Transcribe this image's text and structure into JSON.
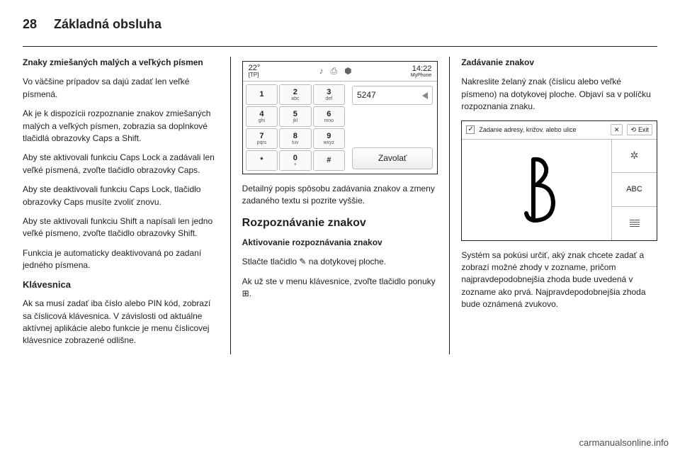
{
  "page_number": "28",
  "chapter": "Základná obsluha",
  "col1": {
    "h1": "Znaky zmiešaných malých a veľkých písmen",
    "p1": "Vo väčšine prípadov sa dajú zadať len veľké písmená.",
    "p2": "Ak je k dispozícii rozpoznanie znakov zmiešaných malých a veľkých písmen, zobrazia sa doplnkové tlačidlá obrazovky Caps a Shift.",
    "p3": "Aby ste aktivovali funkciu Caps Lock a zadávali len veľké písmená, zvoľte tlačidlo obrazovky Caps.",
    "p4": "Aby ste deaktivovali funkciu Caps Lock, tlačidlo obrazovky Caps musíte zvoliť znovu.",
    "p5": "Aby ste aktivovali funkciu Shift a napísali len jedno veľké písmeno, zvoľte tlačidlo obrazovky Shift.",
    "p6": "Funkcia je automaticky deaktivovaná po zadaní jedného písmena.",
    "h2": "Klávesnica",
    "p7": "Ak sa musí zadať iba číslo alebo PIN kód, zobrazí sa číslicová klávesnica. V závislosti od aktuálne aktívnej aplikácie alebo funkcie je menu číslicovej klávesnice zobrazené odlišne."
  },
  "col2": {
    "screen": {
      "temp": "22°",
      "tp": "[TP]",
      "time": "14:22",
      "src": "MyPhone",
      "number": "5247",
      "call": "Zavolať",
      "keys": [
        {
          "n": "1",
          "l": ""
        },
        {
          "n": "2",
          "l": "abc"
        },
        {
          "n": "3",
          "l": "def"
        },
        {
          "n": "4",
          "l": "ghi"
        },
        {
          "n": "5",
          "l": "jkl"
        },
        {
          "n": "6",
          "l": "mno"
        },
        {
          "n": "7",
          "l": "pqrs"
        },
        {
          "n": "8",
          "l": "tuv"
        },
        {
          "n": "9",
          "l": "wxyz"
        },
        {
          "n": "*",
          "l": ""
        },
        {
          "n": "0",
          "l": "+"
        },
        {
          "n": "#",
          "l": ""
        }
      ]
    },
    "p1": "Detailný popis spôsobu zadávania znakov a zmeny zadaného textu si pozrite vyššie.",
    "h1": "Rozpoznávanie znakov",
    "h2": "Aktivovanie rozpoznávania znakov",
    "p2": "Stlačte tlačidlo ✎ na dotykovej ploche.",
    "p3": "Ak už ste v menu klávesnice, zvoľte tlačidlo ponuky ⊞."
  },
  "col3": {
    "h1": "Zadávanie znakov",
    "p1": "Nakreslite želaný znak (číslicu alebo veľké písmeno) na dotykovej ploche. Objaví sa v políčku rozpoznania znaku.",
    "screen": {
      "title": "Zadanie adresy, križov. alebo ulice",
      "exit": "Exit",
      "side2": "ABC"
    },
    "p2": "Systém sa pokúsi určiť, aký znak chcete zadať a zobrazí možné zhody v zozname, pričom najpravdepodobnejšia zhoda bude uvedená v zozname ako prvá. Najpravdepodobnejšia zhoda bude oznámená zvukovo."
  },
  "footer": "carmanualsonline.info"
}
